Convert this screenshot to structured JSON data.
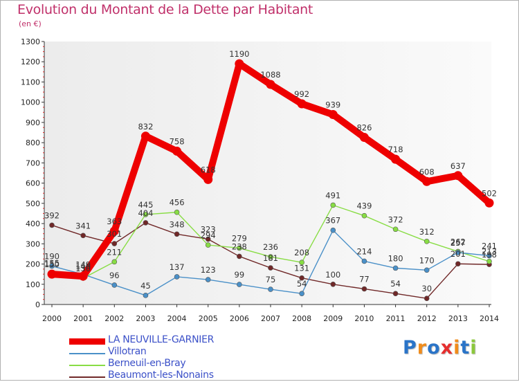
{
  "chart_data": {
    "type": "line",
    "title": "Evolution du Montant de la Dette par Habitant",
    "subtitle": "(en €)",
    "x": [
      "2000",
      "2001",
      "2002",
      "2003",
      "2004",
      "2005",
      "2006",
      "2007",
      "2008",
      "2009",
      "2010",
      "2011",
      "2012",
      "2013",
      "2014"
    ],
    "ylim": [
      0,
      1300
    ],
    "yticks": [
      0,
      100,
      200,
      300,
      400,
      500,
      600,
      700,
      800,
      900,
      1000,
      1100,
      1200,
      1300
    ],
    "grid": false,
    "legend_position": "bottom-left",
    "series": [
      {
        "name": "LA NEUVILLE-GARNIER",
        "color": "#ee0000",
        "values": [
          150,
          140,
          363,
          832,
          758,
          618,
          1190,
          1088,
          992,
          939,
          826,
          718,
          608,
          637,
          502
        ]
      },
      {
        "name": "Villotran",
        "color": "#4a90c8",
        "values": [
          190,
          149,
          96,
          45,
          137,
          123,
          99,
          75,
          54,
          367,
          214,
          180,
          170,
          257,
          241
        ]
      },
      {
        "name": "Berneuil-en-Bray",
        "color": "#88dd44",
        "values": [
          155,
          130,
          211,
          445,
          456,
          294,
          279,
          236,
          208,
          491,
          439,
          372,
          312,
          262,
          213
        ]
      },
      {
        "name": "Beaumont-les-Nonains",
        "color": "#702828",
        "values": [
          392,
          341,
          301,
          404,
          348,
          323,
          238,
          181,
          131,
          100,
          77,
          54,
          30,
          201,
          198
        ]
      }
    ]
  },
  "logo": {
    "letters": [
      "P",
      "r",
      "o",
      "x",
      "i",
      "t",
      "i"
    ],
    "colors": [
      "#2a74c8",
      "#f08c1c",
      "#2a74c8",
      "#e62e2e",
      "#f08c1c",
      "#2a74c8",
      "#8cc83c"
    ]
  }
}
